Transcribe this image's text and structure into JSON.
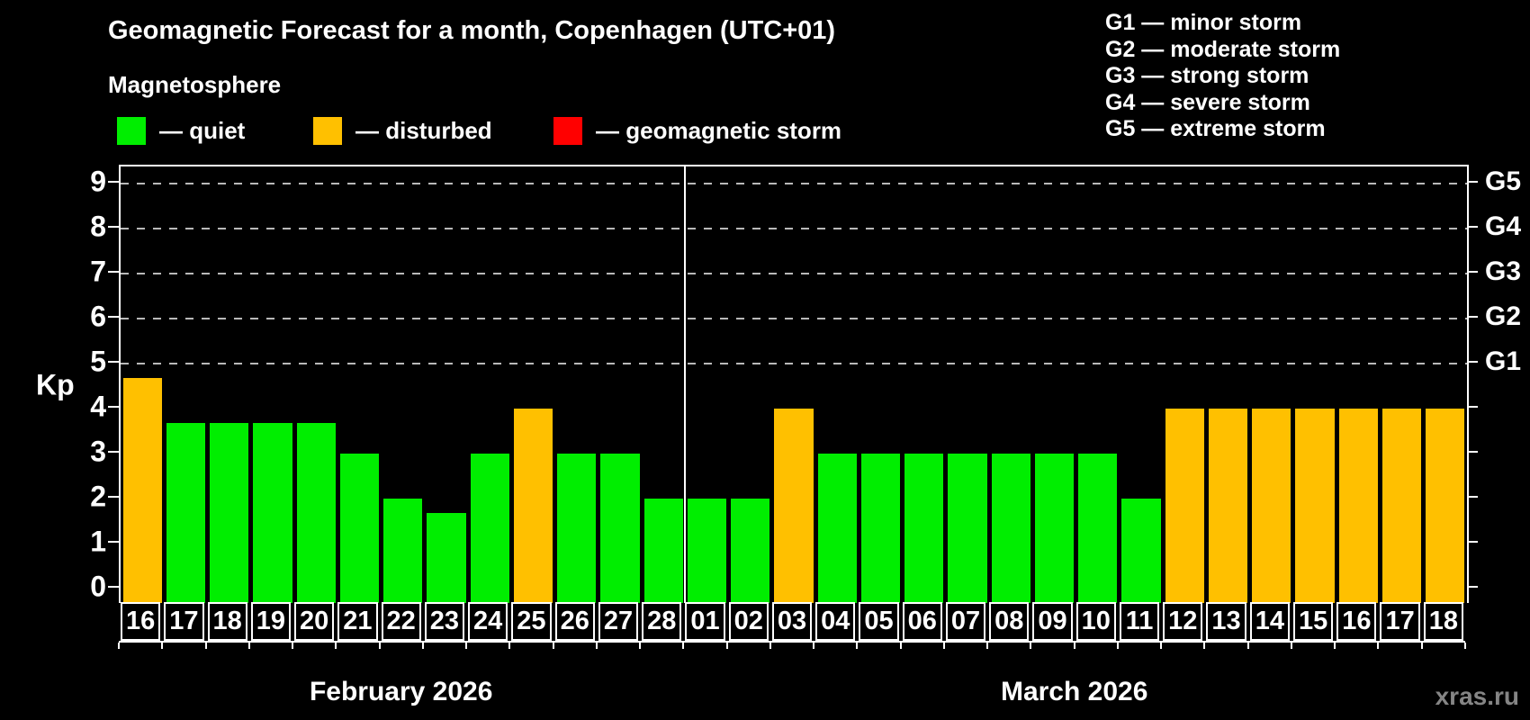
{
  "title": "Geomagnetic Forecast for a month, Copenhagen (UTC+01)",
  "subtitle": "Magnetosphere",
  "status_legend": [
    {
      "key": "quiet",
      "label": "— quiet",
      "color": "#00EE00"
    },
    {
      "key": "disturbed",
      "label": "— disturbed",
      "color": "#FFC000"
    },
    {
      "key": "storm",
      "label": "— geomagnetic storm",
      "color": "#FF0000"
    }
  ],
  "g_legend": [
    "G1 — minor storm",
    "G2 — moderate storm",
    "G3 — strong storm",
    "G4 — severe storm",
    "G5 — extreme storm"
  ],
  "watermark": "xras.ru",
  "chart_data": {
    "type": "bar",
    "title": "Geomagnetic Forecast for a month, Copenhagen (UTC+01)",
    "ylabel": "Kp",
    "ylim": [
      0,
      9.4
    ],
    "y_ticks": [
      0,
      1,
      2,
      3,
      4,
      5,
      6,
      7,
      8,
      9
    ],
    "grid": "horizontal dashed lines at Kp 5,6,7,8,9",
    "legend_position": "top-left",
    "right_axis_labels": [
      {
        "label": "G1",
        "kp": 5
      },
      {
        "label": "G2",
        "kp": 6
      },
      {
        "label": "G3",
        "kp": 7
      },
      {
        "label": "G4",
        "kp": 8
      },
      {
        "label": "G5",
        "kp": 9
      }
    ],
    "colors": {
      "quiet": "#00EE00",
      "disturbed": "#FFC000",
      "storm": "#FF0000"
    },
    "months": [
      {
        "label": "February 2026",
        "days": 13
      },
      {
        "label": "March 2026",
        "days": 18
      }
    ],
    "bars": [
      {
        "day": "16",
        "month": "February 2026",
        "kp": 4.67,
        "status": "disturbed"
      },
      {
        "day": "17",
        "month": "February 2026",
        "kp": 3.67,
        "status": "quiet"
      },
      {
        "day": "18",
        "month": "February 2026",
        "kp": 3.67,
        "status": "quiet"
      },
      {
        "day": "19",
        "month": "February 2026",
        "kp": 3.67,
        "status": "quiet"
      },
      {
        "day": "20",
        "month": "February 2026",
        "kp": 3.67,
        "status": "quiet"
      },
      {
        "day": "21",
        "month": "February 2026",
        "kp": 3.0,
        "status": "quiet"
      },
      {
        "day": "22",
        "month": "February 2026",
        "kp": 2.0,
        "status": "quiet"
      },
      {
        "day": "23",
        "month": "February 2026",
        "kp": 1.67,
        "status": "quiet"
      },
      {
        "day": "24",
        "month": "February 2026",
        "kp": 3.0,
        "status": "quiet"
      },
      {
        "day": "25",
        "month": "February 2026",
        "kp": 4.0,
        "status": "disturbed"
      },
      {
        "day": "26",
        "month": "February 2026",
        "kp": 3.0,
        "status": "quiet"
      },
      {
        "day": "27",
        "month": "February 2026",
        "kp": 3.0,
        "status": "quiet"
      },
      {
        "day": "28",
        "month": "February 2026",
        "kp": 2.0,
        "status": "quiet"
      },
      {
        "day": "01",
        "month": "March 2026",
        "kp": 2.0,
        "status": "quiet"
      },
      {
        "day": "02",
        "month": "March 2026",
        "kp": 2.0,
        "status": "quiet"
      },
      {
        "day": "03",
        "month": "March 2026",
        "kp": 4.0,
        "status": "disturbed"
      },
      {
        "day": "04",
        "month": "March 2026",
        "kp": 3.0,
        "status": "quiet"
      },
      {
        "day": "05",
        "month": "March 2026",
        "kp": 3.0,
        "status": "quiet"
      },
      {
        "day": "06",
        "month": "March 2026",
        "kp": 3.0,
        "status": "quiet"
      },
      {
        "day": "07",
        "month": "March 2026",
        "kp": 3.0,
        "status": "quiet"
      },
      {
        "day": "08",
        "month": "March 2026",
        "kp": 3.0,
        "status": "quiet"
      },
      {
        "day": "09",
        "month": "March 2026",
        "kp": 3.0,
        "status": "quiet"
      },
      {
        "day": "10",
        "month": "March 2026",
        "kp": 3.0,
        "status": "quiet"
      },
      {
        "day": "11",
        "month": "March 2026",
        "kp": 2.0,
        "status": "quiet"
      },
      {
        "day": "12",
        "month": "March 2026",
        "kp": 4.0,
        "status": "disturbed"
      },
      {
        "day": "13",
        "month": "March 2026",
        "kp": 4.0,
        "status": "disturbed"
      },
      {
        "day": "14",
        "month": "March 2026",
        "kp": 4.0,
        "status": "disturbed"
      },
      {
        "day": "15",
        "month": "March 2026",
        "kp": 4.0,
        "status": "disturbed"
      },
      {
        "day": "16",
        "month": "March 2026",
        "kp": 4.0,
        "status": "disturbed"
      },
      {
        "day": "17",
        "month": "March 2026",
        "kp": 4.0,
        "status": "disturbed"
      },
      {
        "day": "18",
        "month": "March 2026",
        "kp": 4.0,
        "status": "disturbed"
      }
    ]
  }
}
